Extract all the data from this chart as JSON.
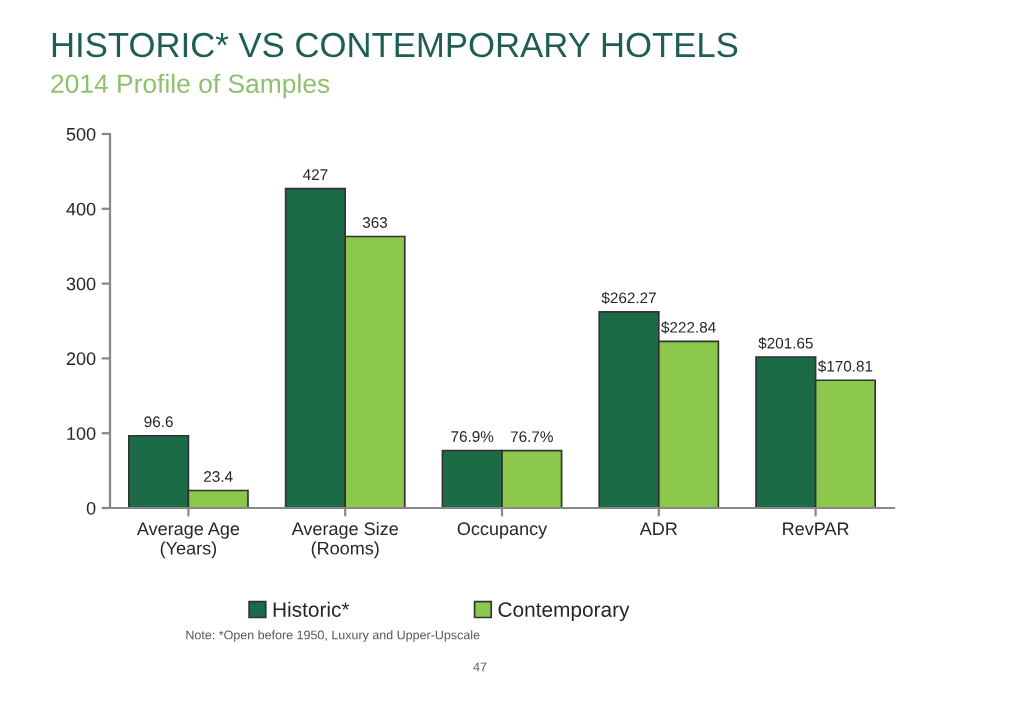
{
  "chart_data": {
    "type": "bar",
    "title": "HISTORIC* VS CONTEMPORARY HOTELS",
    "subtitle": "2014 Profile of Samples",
    "categories": [
      "Average Age\n(Years)",
      "Average Size\n(Rooms)",
      "Occupancy",
      "ADR",
      "RevPAR"
    ],
    "series": [
      {
        "name": "Historic*",
        "color": "#1b6b47",
        "values": [
          96.6,
          427,
          76.9,
          262.27,
          201.65
        ],
        "value_labels": [
          "96.6",
          "427",
          "76.9%",
          "$262.27",
          "$201.65"
        ]
      },
      {
        "name": "Contemporary",
        "color": "#8cc84b",
        "values": [
          23.4,
          363,
          76.7,
          222.84,
          170.81
        ],
        "value_labels": [
          "23.4",
          "363",
          "76.7%",
          "$222.84",
          "$170.81"
        ]
      }
    ],
    "ylim": [
      0,
      500
    ],
    "yticks": [
      0,
      100,
      200,
      300,
      400,
      500
    ],
    "grid": false,
    "legend": "bottom",
    "annotations": [
      "Note: *Open before 1950, Luxury and Upper-Upscale",
      "47"
    ]
  }
}
